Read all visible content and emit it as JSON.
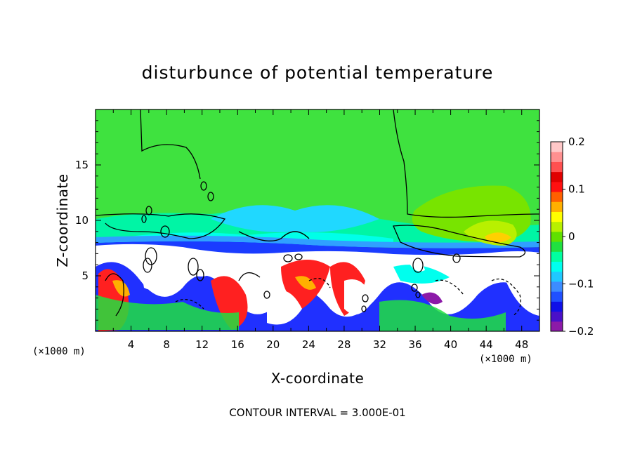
{
  "chart_data": {
    "type": "heatmap",
    "title": "disturbunce of potential temperature",
    "xlabel": "X-coordinate",
    "ylabel": "Z-coordinate",
    "x_unit": "(×1000 m)",
    "z_unit": "(×1000 m)",
    "xlim": [
      0,
      50
    ],
    "ylim": [
      0,
      20
    ],
    "x_ticks": [
      4,
      8,
      12,
      16,
      20,
      24,
      28,
      32,
      36,
      40,
      44,
      48
    ],
    "y_ticks": [
      5,
      10,
      15
    ],
    "colorbar": {
      "range": [
        -0.2,
        0.2
      ],
      "tick_values": [
        0.2,
        0.1,
        0,
        -0.1,
        -0.2
      ],
      "tick_labels": [
        "0.2",
        "0.1",
        "0",
        "−0.1",
        "−0.2"
      ],
      "colors": [
        "#8c1aa8",
        "#4a10c8",
        "#1010e8",
        "#2050ff",
        "#3c8cff",
        "#20c8ff",
        "#00ffee",
        "#00ffa0",
        "#20e040",
        "#60e000",
        "#b8f000",
        "#ffff00",
        "#ffb000",
        "#ff6000",
        "#ff1010",
        "#e00000",
        "#ff5050",
        "#ff9090",
        "#ffc8c8"
      ]
    },
    "field_description_regions": [
      {
        "x": [
          0,
          50
        ],
        "z": [
          7,
          20
        ],
        "value": 0.0
      },
      {
        "x": [
          13,
          33
        ],
        "z": [
          9,
          11
        ],
        "value": -0.05
      },
      {
        "x": [
          36,
          48
        ],
        "z": [
          8,
          12
        ],
        "value": 0.05
      },
      {
        "x": [
          0,
          50
        ],
        "z": [
          0,
          7
        ],
        "value": "mixed"
      }
    ],
    "contour_interval": "3.000E-01"
  },
  "footer": {
    "contour_text": "CONTOUR INTERVAL = 3.000E-01"
  }
}
